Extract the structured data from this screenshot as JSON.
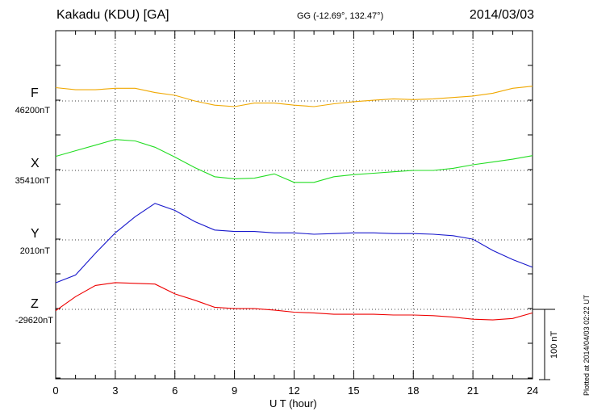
{
  "header": {
    "station": "Kakadu (KDU)  [GA]",
    "coords": "GG (-12.69°, 132.47°)",
    "date": "2014/03/03",
    "plotted": "Plotted at 2014/04/03 02:22 UT"
  },
  "scale_bar": {
    "label": "100 nT",
    "value_nT": 100
  },
  "chart_data": {
    "type": "line",
    "xlabel": "U T (hour)",
    "xlim": [
      0,
      24
    ],
    "xticks": [
      0,
      3,
      6,
      9,
      12,
      15,
      18,
      21,
      24
    ],
    "grid": true,
    "series": [
      {
        "name": "F",
        "baseline_label": "46200nT",
        "color": "#f0a800",
        "x": [
          0,
          1,
          2,
          3,
          4,
          5,
          6,
          7,
          8,
          9,
          10,
          11,
          12,
          13,
          14,
          15,
          16,
          17,
          18,
          19,
          20,
          21,
          22,
          23,
          24
        ],
        "values": [
          19,
          16,
          16,
          18,
          18,
          12,
          8,
          0,
          -6,
          -8,
          -3,
          -3,
          -6,
          -8,
          -4,
          -1,
          1,
          3,
          2,
          3,
          5,
          7,
          11,
          18,
          21
        ]
      },
      {
        "name": "X",
        "baseline_label": "35410nT",
        "color": "#22dd22",
        "x": [
          0,
          1,
          2,
          3,
          4,
          5,
          6,
          7,
          8,
          9,
          10,
          11,
          12,
          13,
          14,
          15,
          16,
          17,
          18,
          19,
          20,
          21,
          22,
          23,
          24
        ],
        "values": [
          20,
          28,
          36,
          44,
          42,
          33,
          19,
          4,
          -9,
          -12,
          -11,
          -5,
          -17,
          -17,
          -9,
          -6,
          -4,
          -2,
          0,
          0,
          3,
          8,
          12,
          16,
          21
        ]
      },
      {
        "name": "Y",
        "baseline_label": "2010nT",
        "color": "#1818cc",
        "x": [
          0,
          1,
          2,
          3,
          4,
          5,
          6,
          7,
          8,
          9,
          10,
          11,
          12,
          13,
          14,
          15,
          16,
          17,
          18,
          19,
          20,
          21,
          22,
          23,
          24
        ],
        "values": [
          -61,
          -50,
          -19,
          10,
          33,
          52,
          42,
          26,
          14,
          12,
          12,
          10,
          10,
          8,
          9,
          10,
          10,
          9,
          9,
          8,
          6,
          1,
          -15,
          -28,
          -39
        ]
      },
      {
        "name": "Z",
        "baseline_label": "-29620nT",
        "color": "#ee0000",
        "x": [
          0,
          1,
          2,
          3,
          4,
          5,
          6,
          7,
          8,
          9,
          10,
          11,
          12,
          13,
          14,
          15,
          16,
          17,
          18,
          19,
          20,
          21,
          22,
          23,
          24
        ],
        "values": [
          -2,
          18,
          34,
          38,
          37,
          36,
          22,
          13,
          3,
          1,
          1,
          -1,
          -4,
          -5,
          -7,
          -7,
          -7,
          -8,
          -8,
          -9,
          -11,
          -14,
          -15,
          -13,
          -5
        ]
      }
    ]
  }
}
